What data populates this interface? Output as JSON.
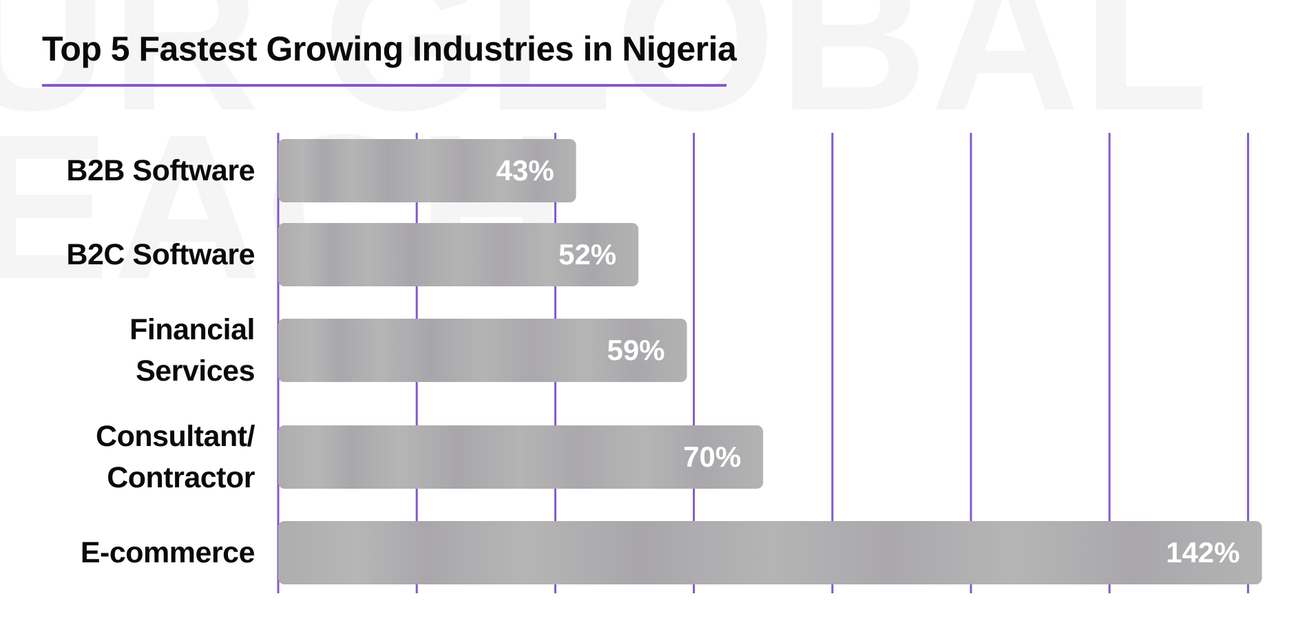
{
  "title": "Top 5 Fastest Growing Industries in Nigeria",
  "watermark": {
    "line1": "UR GLOBAL",
    "line2": "EACH"
  },
  "colors": {
    "accent": "#8458cf",
    "bar": "#b3b2b3",
    "bar_label": "#ffffff",
    "text": "#0a0a0a"
  },
  "chart_data": {
    "type": "bar",
    "orientation": "horizontal",
    "title": "Top 5 Fastest Growing Industries in Nigeria",
    "categories": [
      [
        "B2B Software"
      ],
      [
        "B2C Software"
      ],
      [
        "Financial",
        "Services"
      ],
      [
        "Consultant/",
        "Contractor"
      ],
      [
        "E-commerce"
      ]
    ],
    "values": [
      43,
      52,
      59,
      70,
      142
    ],
    "value_labels": [
      "43%",
      "52%",
      "59%",
      "70%",
      "142%"
    ],
    "unit": "%",
    "xlim": [
      0,
      140
    ],
    "gridline_step": 20,
    "xlabel": "",
    "ylabel": "",
    "grid": true,
    "legend": "none"
  }
}
